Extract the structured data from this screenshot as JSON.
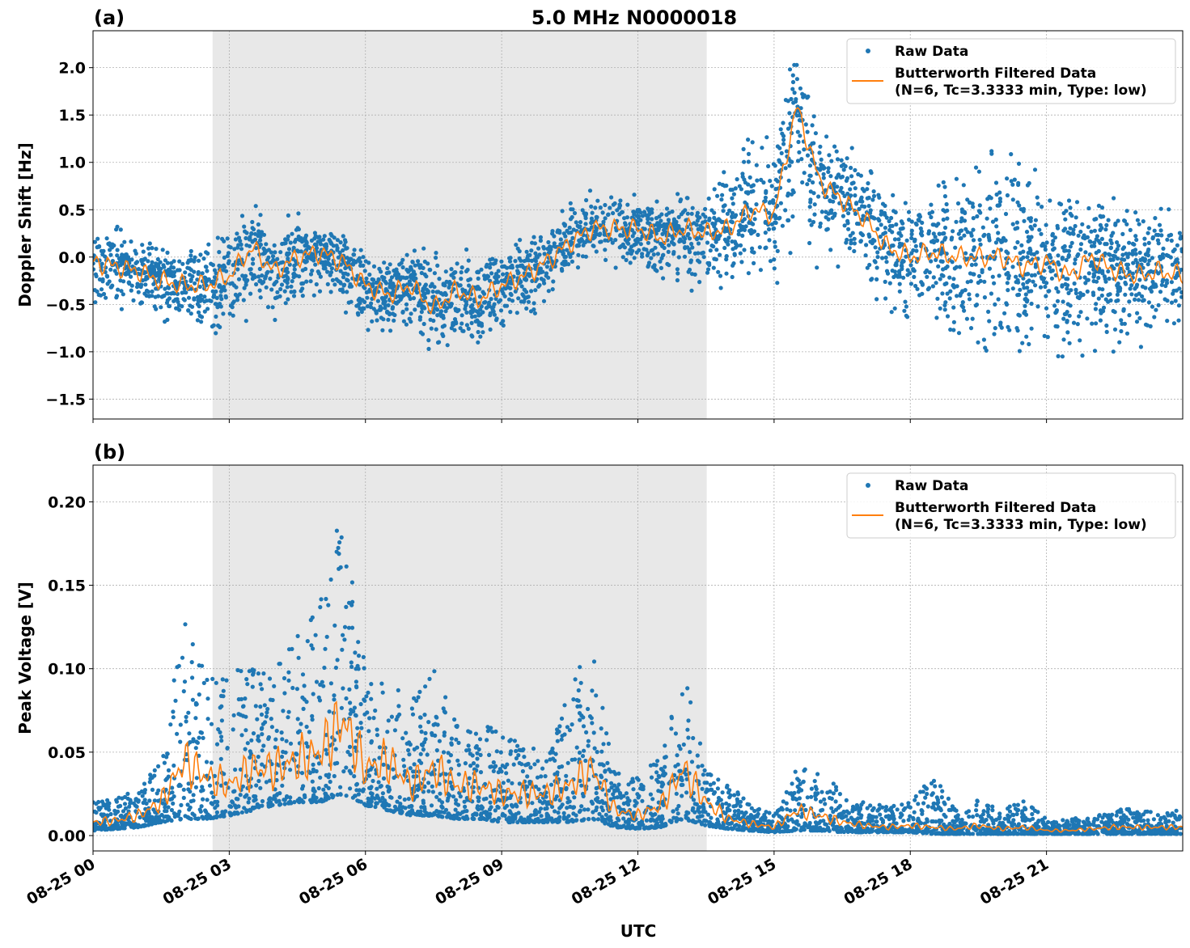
{
  "title": "5.0 MHz N0000018",
  "xlabel": "UTC",
  "colors": {
    "raw": "#1f77b4",
    "filtered": "#ff7f0e",
    "shade": "#e8e8e8"
  },
  "chart_data": [
    {
      "type": "scatter+line",
      "panel_label": "(a)",
      "ylabel": "Doppler Shift [Hz]",
      "xlim_hours_utc": [
        0,
        24
      ],
      "x_ticks": [
        "08-25 00",
        "08-25 03",
        "08-25 06",
        "08-25 09",
        "08-25 12",
        "08-25 15",
        "08-25 18",
        "08-25 21"
      ],
      "ylim": [
        -1.71,
        2.39
      ],
      "y_ticks": [
        2.0,
        1.5,
        1.0,
        0.5,
        0.0,
        -0.5,
        -1.0,
        -1.5
      ],
      "y_tick_labels": [
        "2.0",
        "1.5",
        "1.0",
        "0.5",
        "0.0",
        "−0.5",
        "−1.0",
        "−1.5"
      ],
      "grid": true,
      "shaded_interval_utc": [
        "02:38",
        "13:31"
      ],
      "legend": {
        "position": "top-right",
        "entries": [
          "Raw Data",
          "Butterworth Filtered Data",
          "(N=6, Tc=3.3333 min, Type: low)"
        ]
      },
      "t_hours": [
        0,
        0.5,
        1,
        1.5,
        2,
        2.5,
        3,
        3.5,
        4,
        4.5,
        5,
        5.5,
        6,
        6.5,
        7,
        7.5,
        8,
        8.5,
        9,
        9.5,
        10,
        10.5,
        11,
        11.5,
        12,
        12.5,
        13,
        13.5,
        14,
        14.5,
        15,
        15.5,
        16,
        16.5,
        17,
        17.5,
        18,
        18.5,
        19,
        19.5,
        20,
        20.5,
        21,
        21.5,
        22,
        22.5,
        23,
        23.5,
        24
      ],
      "filtered": [
        -0.05,
        -0.1,
        -0.15,
        -0.25,
        -0.3,
        -0.3,
        -0.2,
        0.1,
        -0.15,
        0.0,
        0.05,
        -0.05,
        -0.3,
        -0.4,
        -0.3,
        -0.55,
        -0.35,
        -0.45,
        -0.3,
        -0.2,
        -0.05,
        0.15,
        0.3,
        0.3,
        0.3,
        0.2,
        0.3,
        0.25,
        0.3,
        0.5,
        0.45,
        1.6,
        0.8,
        0.6,
        0.4,
        0.1,
        0.0,
        0.05,
        0.0,
        0.0,
        0.0,
        -0.1,
        -0.05,
        -0.2,
        0.0,
        -0.15,
        -0.2,
        -0.15,
        -0.2
      ],
      "raw_low": [
        -0.45,
        -0.5,
        -0.55,
        -0.65,
        -0.7,
        -0.8,
        -0.9,
        -0.6,
        -0.6,
        -0.4,
        -0.35,
        -0.5,
        -0.8,
        -0.9,
        -0.75,
        -1.0,
        -0.8,
        -0.9,
        -0.7,
        -0.6,
        -0.4,
        -0.2,
        -0.05,
        -0.1,
        -0.1,
        -0.3,
        -0.3,
        -0.4,
        -0.3,
        -0.2,
        -0.2,
        0.2,
        0.0,
        -0.1,
        -0.3,
        -0.5,
        -0.8,
        -0.8,
        -0.9,
        -1.0,
        -1.1,
        -1.1,
        -1.0,
        -1.1,
        -0.9,
        -0.9,
        -0.9,
        -0.8,
        -0.7
      ],
      "raw_high": [
        0.3,
        0.25,
        0.2,
        0.1,
        0.05,
        0.2,
        0.35,
        0.6,
        0.35,
        0.4,
        0.45,
        0.3,
        0.1,
        0.05,
        0.1,
        0.0,
        0.05,
        0.0,
        0.1,
        0.2,
        0.35,
        0.6,
        0.7,
        0.7,
        0.65,
        0.6,
        0.7,
        0.7,
        0.9,
        1.2,
        1.2,
        2.2,
        1.4,
        1.3,
        1.0,
        0.7,
        0.6,
        0.7,
        0.8,
        1.0,
        1.1,
        0.9,
        0.8,
        0.7,
        0.7,
        0.6,
        0.6,
        0.5,
        0.5
      ]
    },
    {
      "type": "scatter+line",
      "panel_label": "(b)",
      "ylabel": "Peak Voltage [V]",
      "xlim_hours_utc": [
        0,
        24
      ],
      "x_ticks": [
        "08-25 00",
        "08-25 03",
        "08-25 06",
        "08-25 09",
        "08-25 12",
        "08-25 15",
        "08-25 18",
        "08-25 21"
      ],
      "ylim": [
        -0.0092,
        0.222
      ],
      "y_ticks": [
        0.2,
        0.15,
        0.1,
        0.05,
        0.0
      ],
      "y_tick_labels": [
        "0.20",
        "0.15",
        "0.10",
        "0.05",
        "0.00"
      ],
      "grid": true,
      "shaded_interval_utc": [
        "02:38",
        "13:31"
      ],
      "legend": {
        "position": "top-right",
        "entries": [
          "Raw Data",
          "Butterworth Filtered Data",
          "(N=6, Tc=3.3333 min, Type: low)"
        ]
      },
      "t_hours": [
        0,
        0.5,
        1,
        1.5,
        2,
        2.5,
        3,
        3.5,
        4,
        4.5,
        5,
        5.5,
        6,
        6.5,
        7,
        7.5,
        8,
        8.5,
        9,
        9.5,
        10,
        10.5,
        11,
        11.5,
        12,
        12.5,
        13,
        13.5,
        14,
        14.5,
        15,
        15.5,
        16,
        16.5,
        17,
        17.5,
        18,
        18.5,
        19,
        19.5,
        20,
        20.5,
        21,
        21.5,
        22,
        22.5,
        23,
        23.5,
        24
      ],
      "filtered": [
        0.008,
        0.009,
        0.012,
        0.02,
        0.045,
        0.035,
        0.03,
        0.04,
        0.04,
        0.045,
        0.05,
        0.07,
        0.04,
        0.045,
        0.03,
        0.04,
        0.03,
        0.03,
        0.025,
        0.025,
        0.025,
        0.03,
        0.04,
        0.015,
        0.012,
        0.018,
        0.04,
        0.02,
        0.01,
        0.007,
        0.005,
        0.015,
        0.012,
        0.008,
        0.006,
        0.005,
        0.006,
        0.005,
        0.004,
        0.006,
        0.004,
        0.005,
        0.003,
        0.003,
        0.004,
        0.005,
        0.005,
        0.005,
        0.005
      ],
      "raw_low": [
        0.003,
        0.004,
        0.005,
        0.008,
        0.01,
        0.01,
        0.012,
        0.015,
        0.018,
        0.02,
        0.02,
        0.025,
        0.018,
        0.015,
        0.012,
        0.012,
        0.01,
        0.01,
        0.008,
        0.008,
        0.008,
        0.008,
        0.01,
        0.005,
        0.004,
        0.005,
        0.01,
        0.006,
        0.004,
        0.003,
        0.002,
        0.003,
        0.003,
        0.002,
        0.002,
        0.002,
        0.002,
        0.001,
        0.001,
        0.001,
        0.001,
        0.001,
        0.001,
        0.001,
        0.001,
        0.001,
        0.001,
        0.001,
        0.001
      ],
      "raw_high": [
        0.02,
        0.022,
        0.028,
        0.045,
        0.13,
        0.1,
        0.1,
        0.1,
        0.1,
        0.12,
        0.14,
        0.21,
        0.1,
        0.095,
        0.08,
        0.1,
        0.07,
        0.07,
        0.06,
        0.055,
        0.05,
        0.09,
        0.115,
        0.04,
        0.035,
        0.05,
        0.1,
        0.04,
        0.03,
        0.02,
        0.012,
        0.04,
        0.045,
        0.025,
        0.02,
        0.018,
        0.02,
        0.038,
        0.015,
        0.022,
        0.015,
        0.022,
        0.01,
        0.01,
        0.012,
        0.015,
        0.018,
        0.018,
        0.015
      ]
    }
  ]
}
